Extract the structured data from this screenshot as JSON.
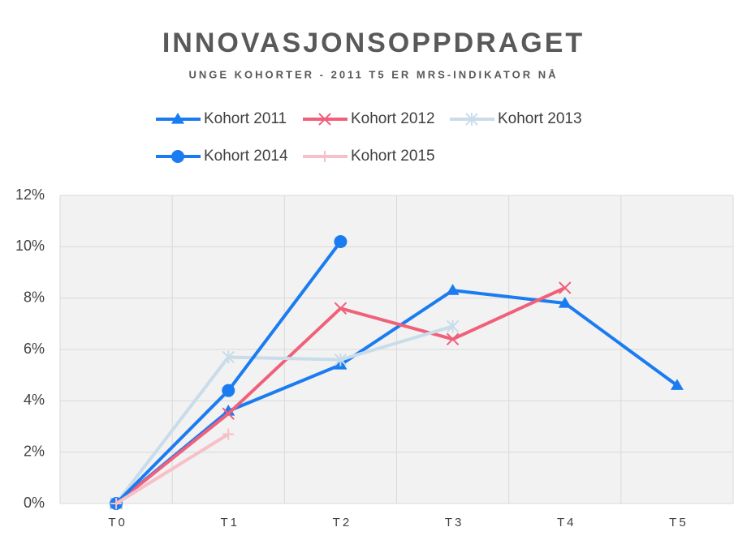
{
  "chart_data": {
    "type": "line",
    "title": "INNOVASJONSOPPDRAGET",
    "subtitle": "UNGE KOHORTER - 2011 T5 ER MRS-INDIKATOR NÅ",
    "categories": [
      "T0",
      "T1",
      "T2",
      "T3",
      "T4",
      "T5"
    ],
    "series": [
      {
        "name": "Kohort 2011",
        "color": "#1a7cf0",
        "marker": "triangle",
        "values": [
          0,
          3.6,
          5.4,
          8.3,
          7.8,
          4.6
        ]
      },
      {
        "name": "Kohort 2012",
        "color": "#f0607a",
        "marker": "x",
        "values": [
          0,
          3.5,
          7.6,
          6.4,
          8.4,
          null
        ]
      },
      {
        "name": "Kohort 2013",
        "color": "#c9dcea",
        "marker": "star",
        "values": [
          0,
          5.7,
          5.6,
          6.9,
          null,
          null
        ]
      },
      {
        "name": "Kohort 2014",
        "color": "#1a7cf0",
        "marker": "circle",
        "values": [
          0,
          4.4,
          10.2,
          null,
          null,
          null
        ]
      },
      {
        "name": "Kohort 2015",
        "color": "#f7c0c8",
        "marker": "plus",
        "values": [
          0,
          2.7,
          null,
          null,
          null,
          null
        ]
      }
    ],
    "ylim": [
      0,
      12
    ],
    "yticks": [
      {
        "value": 0,
        "label": "0%"
      },
      {
        "value": 2,
        "label": "2%"
      },
      {
        "value": 4,
        "label": "4%"
      },
      {
        "value": 6,
        "label": "6%"
      },
      {
        "value": 8,
        "label": "8%"
      },
      {
        "value": 10,
        "label": "10%"
      },
      {
        "value": 12,
        "label": "12%"
      }
    ],
    "grid": true,
    "legend": "top"
  }
}
